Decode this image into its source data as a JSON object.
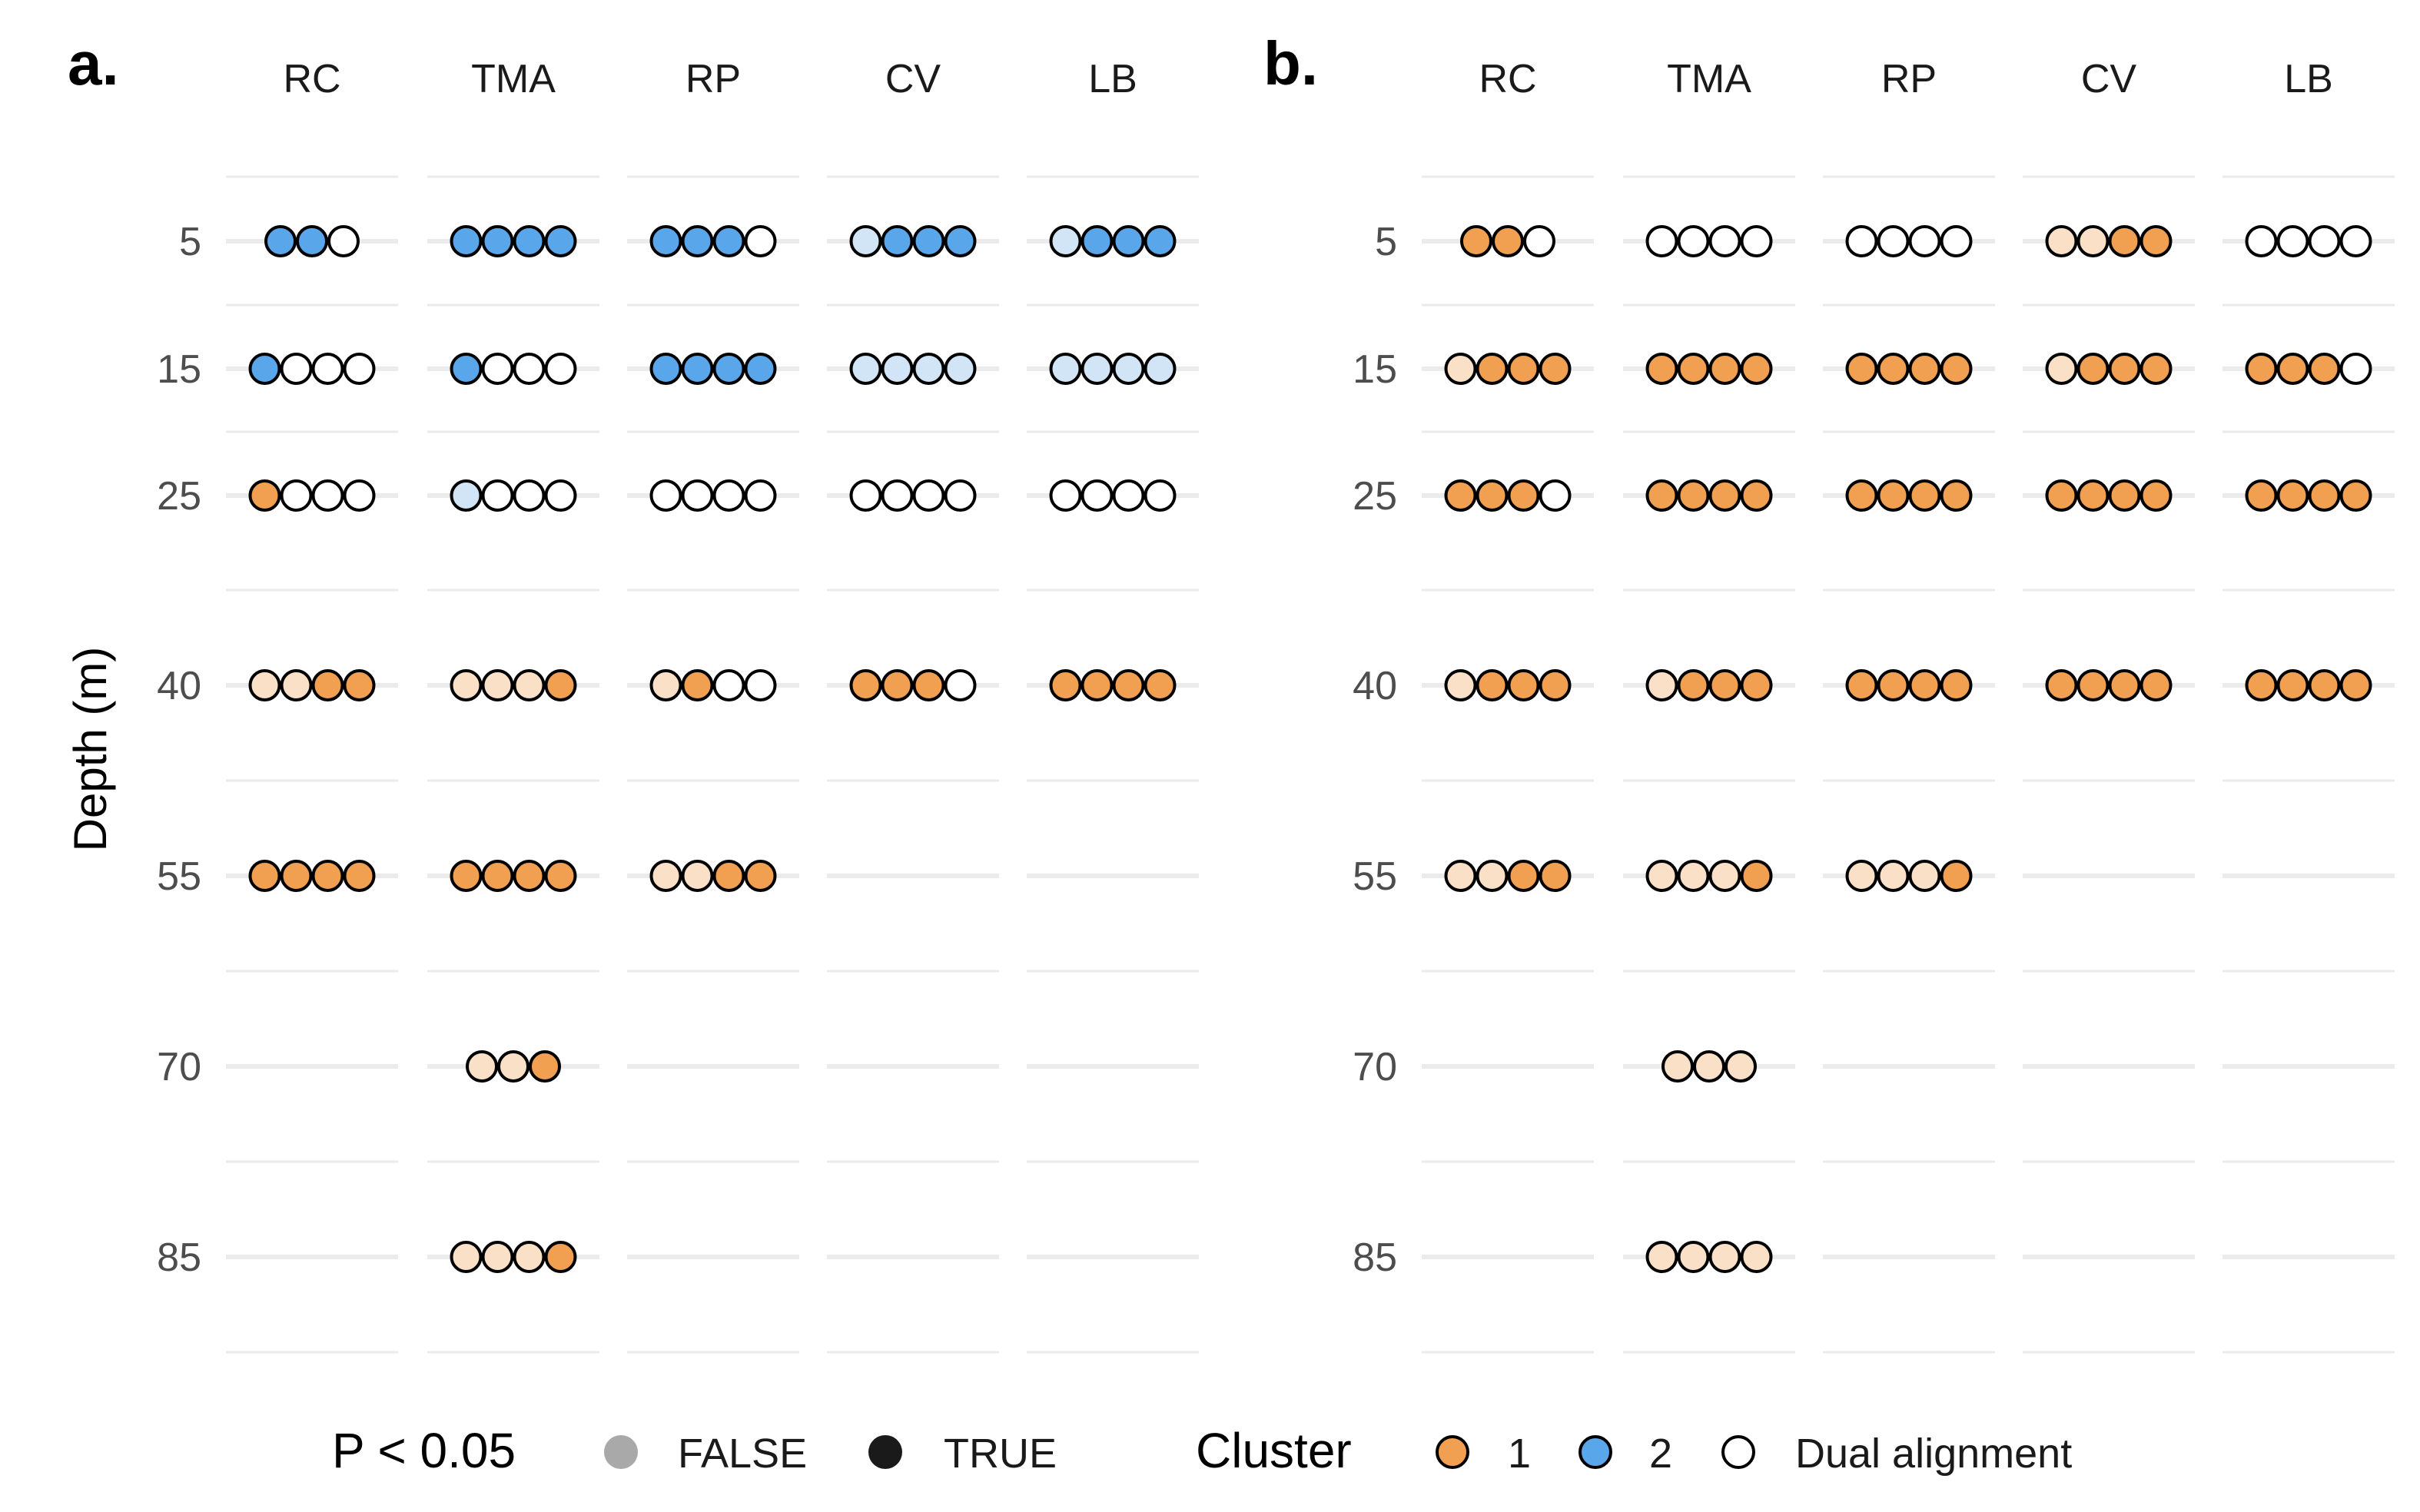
{
  "chart_data": [
    {
      "panel": "a.",
      "type": "dot-matrix",
      "ylabel": "Depth (m)",
      "facets": [
        "RC",
        "TMA",
        "RP",
        "CV",
        "LB"
      ],
      "depths": [
        5,
        15,
        25,
        40,
        55,
        70,
        85
      ],
      "cells": {
        "RC": {
          "5": [
            "2T",
            "2T",
            "D"
          ],
          "15": [
            "2T",
            "D",
            "D",
            "D"
          ],
          "25": [
            "1T",
            "D",
            "D",
            "D"
          ],
          "40": [
            "1F",
            "1F",
            "1T",
            "1T"
          ],
          "55": [
            "1T",
            "1T",
            "1T",
            "1T"
          ]
        },
        "TMA": {
          "5": [
            "2T",
            "2T",
            "2T",
            "2T"
          ],
          "15": [
            "2T",
            "D",
            "D",
            "D"
          ],
          "25": [
            "2F",
            "D",
            "D",
            "D"
          ],
          "40": [
            "1F",
            "1F",
            "1F",
            "1T"
          ],
          "55": [
            "1T",
            "1T",
            "1T",
            "1T"
          ],
          "70": [
            "1F",
            "1F",
            "1T"
          ],
          "85": [
            "1F",
            "1F",
            "1F",
            "1T"
          ]
        },
        "RP": {
          "5": [
            "2T",
            "2T",
            "2T",
            "D"
          ],
          "15": [
            "2T",
            "2T",
            "2T",
            "2T"
          ],
          "25": [
            "D",
            "D",
            "D",
            "D"
          ],
          "40": [
            "1F",
            "1T",
            "D",
            "D"
          ],
          "55": [
            "1F",
            "1F",
            "1T",
            "1T"
          ]
        },
        "CV": {
          "5": [
            "2F",
            "2T",
            "2T",
            "2T"
          ],
          "15": [
            "2F",
            "2F",
            "2F",
            "2F"
          ],
          "25": [
            "D",
            "D",
            "D",
            "D"
          ],
          "40": [
            "1T",
            "1T",
            "1T",
            "D"
          ]
        },
        "LB": {
          "5": [
            "2F",
            "2T",
            "2T",
            "2T"
          ],
          "15": [
            "2F",
            "2F",
            "2F",
            "2F"
          ],
          "25": [
            "D",
            "D",
            "D",
            "D"
          ],
          "40": [
            "1T",
            "1T",
            "1T",
            "1T"
          ]
        }
      }
    },
    {
      "panel": "b.",
      "type": "dot-matrix",
      "ylabel": "",
      "facets": [
        "RC",
        "TMA",
        "RP",
        "CV",
        "LB"
      ],
      "depths": [
        5,
        15,
        25,
        40,
        55,
        70,
        85
      ],
      "cells": {
        "RC": {
          "5": [
            "1T",
            "1T",
            "D"
          ],
          "15": [
            "1F",
            "1T",
            "1T",
            "1T"
          ],
          "25": [
            "1T",
            "1T",
            "1T",
            "D"
          ],
          "40": [
            "1F",
            "1T",
            "1T",
            "1T"
          ],
          "55": [
            "1F",
            "1F",
            "1T",
            "1T"
          ]
        },
        "TMA": {
          "5": [
            "D",
            "D",
            "D",
            "D"
          ],
          "15": [
            "1T",
            "1T",
            "1T",
            "1T"
          ],
          "25": [
            "1T",
            "1T",
            "1T",
            "1T"
          ],
          "40": [
            "1F",
            "1T",
            "1T",
            "1T"
          ],
          "55": [
            "1F",
            "1F",
            "1F",
            "1T"
          ],
          "70": [
            "1F",
            "1F",
            "1F"
          ],
          "85": [
            "1F",
            "1F",
            "1F",
            "1F"
          ]
        },
        "RP": {
          "5": [
            "D",
            "D",
            "D",
            "D"
          ],
          "15": [
            "1T",
            "1T",
            "1T",
            "1T"
          ],
          "25": [
            "1T",
            "1T",
            "1T",
            "1T"
          ],
          "40": [
            "1T",
            "1T",
            "1T",
            "1T"
          ],
          "55": [
            "1F",
            "1F",
            "1F",
            "1T"
          ]
        },
        "CV": {
          "5": [
            "1F",
            "1F",
            "1T",
            "1T"
          ],
          "15": [
            "1F",
            "1T",
            "1T",
            "1T"
          ],
          "25": [
            "1T",
            "1T",
            "1T",
            "1T"
          ],
          "40": [
            "1T",
            "1T",
            "1T",
            "1T"
          ]
        },
        "LB": {
          "5": [
            "D",
            "D",
            "D",
            "D"
          ],
          "15": [
            "1T",
            "1T",
            "1T",
            "D"
          ],
          "25": [
            "1T",
            "1T",
            "1T",
            "1T"
          ],
          "40": [
            "1T",
            "1T",
            "1T",
            "1T"
          ]
        }
      }
    }
  ],
  "colors": {
    "cluster1_true": "#f0a050",
    "cluster1_false": "#fbe0c8",
    "cluster2_true": "#5aa6eb",
    "cluster2_false": "#d2e5f7",
    "dual": "#ffffff",
    "outline": "#000000",
    "legend_false": "#a9a9a9",
    "legend_true": "#1a1a1a"
  },
  "legend": {
    "p_title": "P < 0.05",
    "p_items": [
      {
        "label": "FALSE",
        "key": "legend_false"
      },
      {
        "label": "TRUE",
        "key": "legend_true"
      }
    ],
    "cluster_title": "Cluster",
    "cluster_items": [
      {
        "label": "1",
        "key": "cluster1_true"
      },
      {
        "label": "2",
        "key": "cluster2_true"
      },
      {
        "label": "Dual alignment",
        "key": "dual"
      }
    ]
  }
}
